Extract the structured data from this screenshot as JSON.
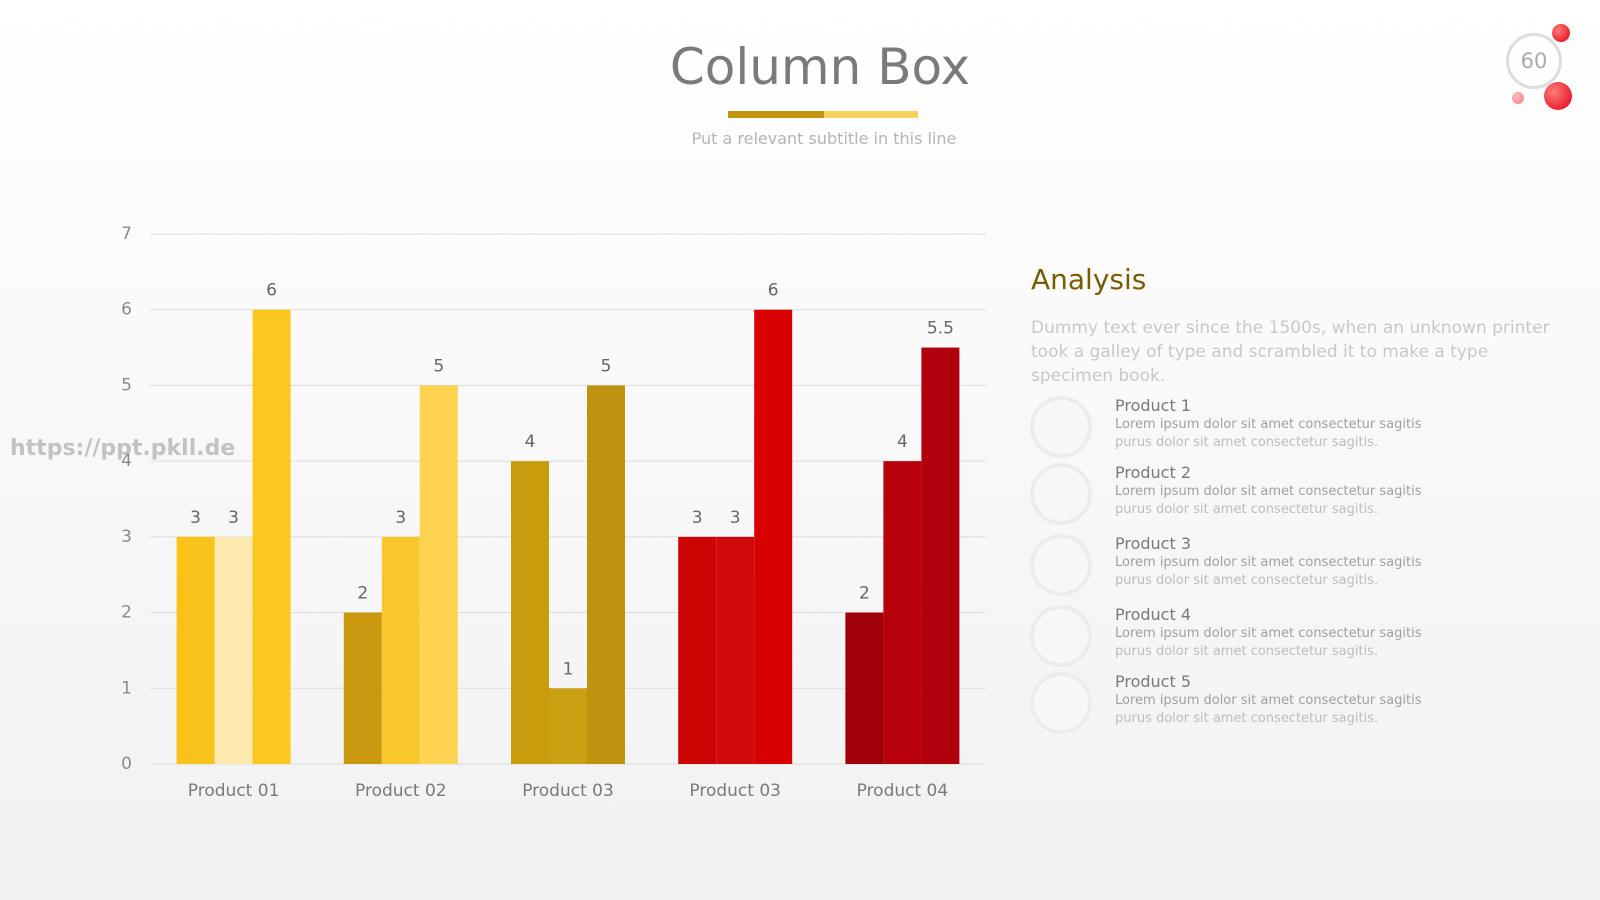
{
  "header": {
    "title": "Column Box",
    "subtitle": "Put a relevant subtitle in this line",
    "page_number": "60"
  },
  "watermark": "https://ppt.pkll.de",
  "chart_data": {
    "type": "bar",
    "categories": [
      "Product 01",
      "Product 02",
      "Product 03",
      "Product 03",
      "Product 04"
    ],
    "series": [
      {
        "values": [
          3,
          2,
          4,
          3,
          2
        ],
        "colors": [
          "#f9c21b",
          "#c9980f",
          "#c89c0c",
          "#cc0404",
          "#a00008"
        ]
      },
      {
        "values": [
          3,
          3,
          1,
          3,
          4
        ],
        "colors": [
          "#fde9ad",
          "#f8c72c",
          "#c9a012",
          "#d00a0a",
          "#b8000c"
        ]
      },
      {
        "values": [
          6,
          5,
          5,
          6,
          5.5
        ],
        "colors": [
          "#fcc81f",
          "#fdd351",
          "#bf930f",
          "#d80000",
          "#b0000e"
        ]
      }
    ],
    "ylim": [
      0,
      7
    ],
    "yticks": [
      0,
      1,
      2,
      3,
      4,
      5,
      6,
      7
    ],
    "grid": true
  },
  "analysis": {
    "title": "Analysis",
    "text": "Dummy text ever since the 1500s, when an unknown printer took a galley of type and scrambled it to make a type specimen book.",
    "items": [
      {
        "title": "Product 1",
        "line1": "Lorem ipsum dolor sit amet consectetur sagitis",
        "line2": "purus dolor sit amet consectetur sagitis."
      },
      {
        "title": "Product 2",
        "line1": "Lorem ipsum dolor sit amet consectetur sagitis",
        "line2": "purus dolor sit amet consectetur sagitis."
      },
      {
        "title": "Product 3",
        "line1": "Lorem ipsum dolor sit amet consectetur sagitis",
        "line2": "purus dolor sit amet consectetur sagitis."
      },
      {
        "title": "Product 4",
        "line1": "Lorem ipsum dolor sit amet consectetur sagitis",
        "line2": "purus dolor sit amet consectetur sagitis."
      },
      {
        "title": "Product 5",
        "line1": "Lorem ipsum dolor sit amet consectetur sagitis",
        "line2": "purus dolor sit amet consectetur sagitis."
      }
    ]
  }
}
